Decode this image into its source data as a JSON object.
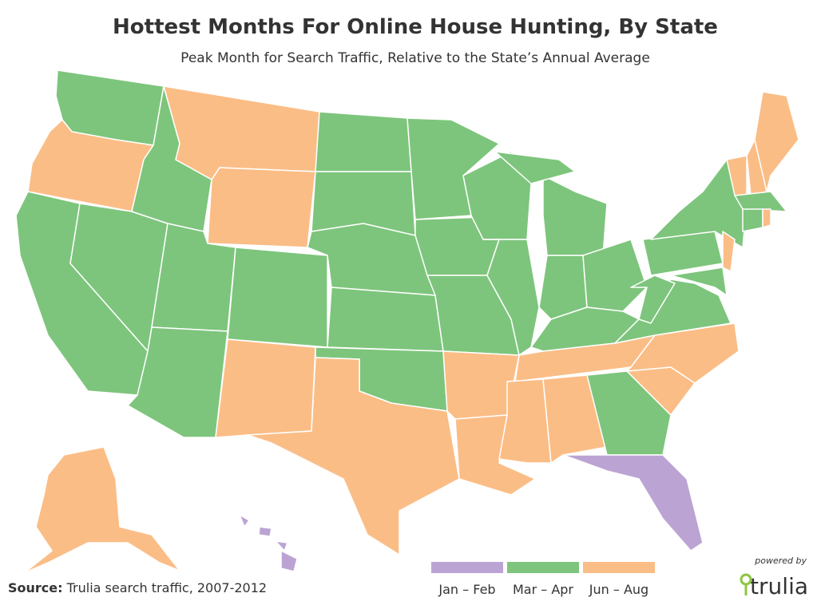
{
  "header": {
    "title": "Hottest Months For Online House Hunting, By State",
    "subtitle": "Peak Month for Search Traffic, Relative to the State’s Annual Average"
  },
  "legend": {
    "items": [
      {
        "label": "Jan – Feb",
        "color": "#bba4d4"
      },
      {
        "label": "Mar – Apr",
        "color": "#7dc57c"
      },
      {
        "label": "Jun – Aug",
        "color": "#fbbd86"
      }
    ]
  },
  "source": {
    "label": "Source:",
    "text": "Trulia search traffic, 2007-2012"
  },
  "branding": {
    "powered_by": "powered by",
    "logo": "trulia"
  }
}
